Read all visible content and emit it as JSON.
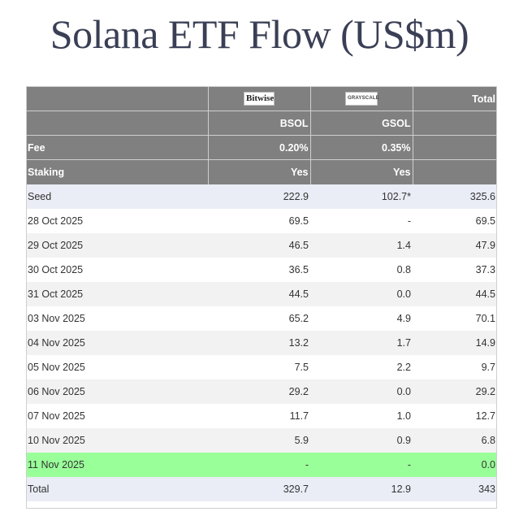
{
  "title": "Solana ETF Flow (US$m)",
  "header": {
    "logos": {
      "bitwise": "Bitwise",
      "grayscale": "GRAYSCALE"
    },
    "total_label": "Total",
    "tickers": {
      "bsol": "BSOL",
      "gsol": "GSOL"
    },
    "fee": {
      "label": "Fee",
      "bsol": "0.20%",
      "gsol": "0.35%"
    },
    "staking": {
      "label": "Staking",
      "bsol": "Yes",
      "gsol": "Yes"
    }
  },
  "rows": [
    {
      "date": "Seed",
      "bsol": "222.9",
      "gsol": "102.7*",
      "total": "325.6"
    },
    {
      "date": "28 Oct 2025",
      "bsol": "69.5",
      "gsol": "-",
      "total": "69.5"
    },
    {
      "date": "29 Oct 2025",
      "bsol": "46.5",
      "gsol": "1.4",
      "total": "47.9"
    },
    {
      "date": "30 Oct 2025",
      "bsol": "36.5",
      "gsol": "0.8",
      "total": "37.3"
    },
    {
      "date": "31 Oct 2025",
      "bsol": "44.5",
      "gsol": "0.0",
      "total": "44.5"
    },
    {
      "date": "03 Nov 2025",
      "bsol": "65.2",
      "gsol": "4.9",
      "total": "70.1"
    },
    {
      "date": "04 Nov 2025",
      "bsol": "13.2",
      "gsol": "1.7",
      "total": "14.9"
    },
    {
      "date": "05 Nov 2025",
      "bsol": "7.5",
      "gsol": "2.2",
      "total": "9.7"
    },
    {
      "date": "06 Nov 2025",
      "bsol": "29.2",
      "gsol": "0.0",
      "total": "29.2"
    },
    {
      "date": "07 Nov 2025",
      "bsol": "11.7",
      "gsol": "1.0",
      "total": "12.7"
    },
    {
      "date": "10 Nov 2025",
      "bsol": "5.9",
      "gsol": "0.9",
      "total": "6.8"
    },
    {
      "date": "11 Nov 2025",
      "bsol": "-",
      "gsol": "-",
      "total": "0.0"
    },
    {
      "date": "Total",
      "bsol": "329.7",
      "gsol": "12.9",
      "total": "343"
    }
  ],
  "colors": {
    "header_bg": "#808080",
    "seed_total_bg": "#eaedf6",
    "alt_row_bg": "#f2f2f2",
    "highlight_row_bg": "#99ff99",
    "title_color": "#3a3f55"
  }
}
